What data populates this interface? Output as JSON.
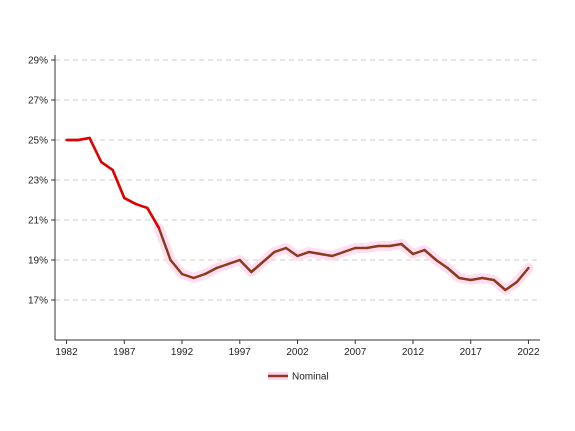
{
  "chart_data": {
    "type": "line",
    "title": "",
    "xlabel": "",
    "ylabel": "",
    "xlim": [
      1981,
      2023
    ],
    "ylim": [
      15,
      29
    ],
    "x_ticks": [
      1982,
      1987,
      1992,
      1997,
      2002,
      2007,
      2012,
      2017,
      2022
    ],
    "y_ticks": [
      17,
      19,
      21,
      23,
      25,
      27,
      29
    ],
    "y_tick_labels": [
      "17%",
      "19%",
      "21%",
      "23%",
      "25%",
      "27%",
      "29%"
    ],
    "grid": "horizontal dashed",
    "legend_position": "bottom-center",
    "series": [
      {
        "name": "Nominal",
        "color": "#8b3a1c",
        "x": [
          1982,
          1983,
          1984,
          1985,
          1986,
          1987,
          1988,
          1989,
          1990,
          1991,
          1992,
          1993,
          1994,
          1995,
          1996,
          1997,
          1998,
          1999,
          2000,
          2001,
          2002,
          2003,
          2004,
          2005,
          2006,
          2007,
          2008,
          2009,
          2010,
          2011,
          2012,
          2013,
          2014,
          2015,
          2016,
          2017,
          2018,
          2019,
          2020,
          2021,
          2022
        ],
        "values": [
          25.0,
          25.0,
          25.1,
          23.9,
          23.5,
          22.1,
          21.8,
          21.6,
          20.6,
          19.0,
          18.3,
          18.1,
          18.3,
          18.6,
          18.8,
          19.0,
          18.4,
          18.9,
          19.4,
          19.6,
          19.2,
          19.4,
          19.3,
          19.2,
          19.4,
          19.6,
          19.6,
          19.7,
          19.7,
          19.8,
          19.3,
          19.5,
          19.0,
          18.6,
          18.1,
          18.0,
          18.1,
          18.0,
          17.5,
          17.9,
          18.6
        ]
      }
    ],
    "highlight_segment": {
      "x_from": 1982,
      "x_to": 1990,
      "color": "#e00000"
    },
    "band_color": "#ffd6ef"
  }
}
